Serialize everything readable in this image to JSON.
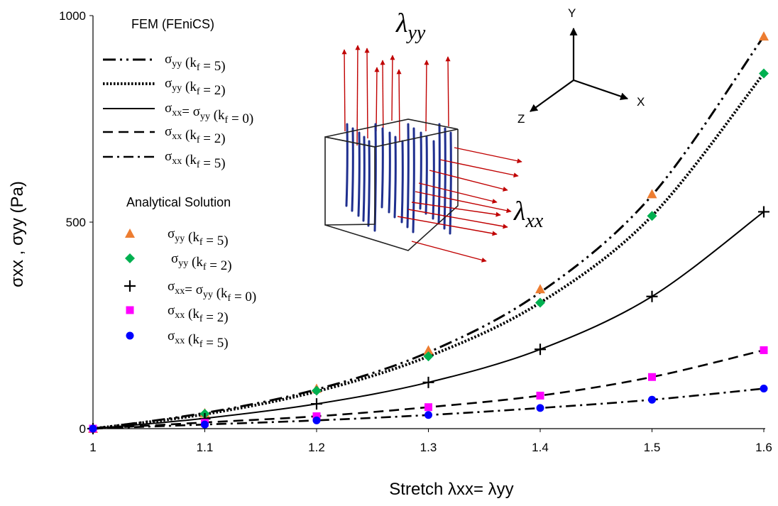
{
  "chart_data": {
    "type": "line",
    "xlabel": "Stretch λxx= λyy",
    "ylabel": "σxx , σyy (Pa)",
    "xlim": [
      1,
      1.6
    ],
    "ylim": [
      0,
      1000
    ],
    "x_ticks": [
      "1",
      "1.1",
      "1.2",
      "1.3",
      "1.4",
      "1.5",
      "1.6"
    ],
    "y_ticks": [
      "0",
      "500",
      "1000"
    ],
    "grid": false,
    "fem_title": "FEM (FEniCS)",
    "analytical_title": "Analytical Solution",
    "fem_series": [
      {
        "name": "σyy (kf = 5)",
        "style": "long-dash-dot-dot",
        "x": [
          1,
          1.1,
          1.2,
          1.3,
          1.4,
          1.5,
          1.6
        ],
        "values": [
          0,
          38,
          95,
          185,
          330,
          565,
          950
        ]
      },
      {
        "name": "σyy (kf = 2)",
        "style": "dotted",
        "x": [
          1,
          1.1,
          1.2,
          1.3,
          1.4,
          1.5,
          1.6
        ],
        "values": [
          0,
          35,
          90,
          175,
          305,
          515,
          860
        ]
      },
      {
        "name": "σxx= σyy (kf = 0)",
        "style": "solid",
        "x": [
          1,
          1.1,
          1.2,
          1.3,
          1.4,
          1.5,
          1.6
        ],
        "values": [
          0,
          25,
          60,
          112,
          192,
          320,
          525
        ]
      },
      {
        "name": "σxx (kf = 2)",
        "style": "dashed",
        "x": [
          1,
          1.1,
          1.2,
          1.3,
          1.4,
          1.5,
          1.6
        ],
        "values": [
          0,
          15,
          30,
          52,
          80,
          125,
          190
        ]
      },
      {
        "name": "σxx (kf = 5)",
        "style": "dash-dot",
        "x": [
          1,
          1.1,
          1.2,
          1.3,
          1.4,
          1.5,
          1.6
        ],
        "values": [
          0,
          10,
          20,
          33,
          50,
          70,
          97
        ]
      }
    ],
    "analytical_series": [
      {
        "name": "σyy (kf = 5)",
        "marker": "triangle",
        "color": "#ed7d31",
        "x": [
          1,
          1.1,
          1.2,
          1.3,
          1.4,
          1.5,
          1.6
        ],
        "values": [
          0,
          38,
          97,
          190,
          338,
          568,
          950
        ]
      },
      {
        "name": "σyy (kf = 2)",
        "marker": "diamond",
        "color": "#00b050",
        "x": [
          1,
          1.1,
          1.2,
          1.3,
          1.4,
          1.5,
          1.6
        ],
        "values": [
          0,
          36,
          92,
          175,
          305,
          515,
          860
        ]
      },
      {
        "name": "σxx= σyy (kf = 0)",
        "marker": "plus",
        "color": "#000000",
        "x": [
          1,
          1.1,
          1.2,
          1.3,
          1.4,
          1.5,
          1.6
        ],
        "values": [
          0,
          24,
          60,
          112,
          192,
          320,
          525
        ]
      },
      {
        "name": "σxx (kf = 2)",
        "marker": "square",
        "color": "#ff00ff",
        "x": [
          1,
          1.1,
          1.2,
          1.3,
          1.4,
          1.5,
          1.6
        ],
        "values": [
          0,
          14,
          30,
          52,
          80,
          125,
          190
        ]
      },
      {
        "name": "σxx (kf = 5)",
        "marker": "circle",
        "color": "#0000ff",
        "x": [
          1,
          1.1,
          1.2,
          1.3,
          1.4,
          1.5,
          1.6
        ],
        "values": [
          0,
          10,
          20,
          33,
          50,
          70,
          97
        ]
      }
    ],
    "annotations": {
      "lambda_yy": "λyy",
      "lambda_xx": "λxx",
      "axis_y": "Y",
      "axis_x": "X",
      "axis_z": "Z"
    },
    "colors": {
      "arrow": "#c00000",
      "fiber": "#1f2f8f"
    }
  }
}
